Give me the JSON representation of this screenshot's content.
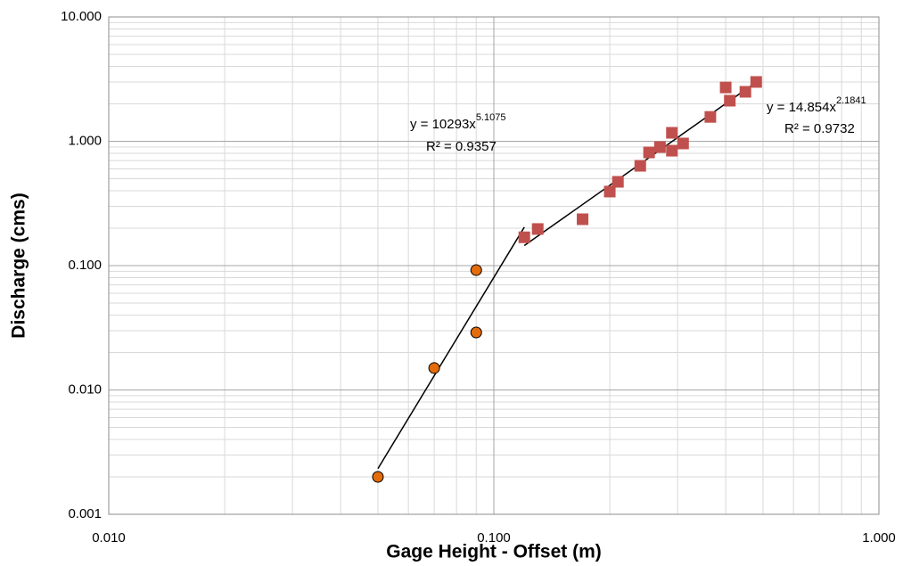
{
  "chart_data": {
    "type": "scatter",
    "x_label": "Gage Height - Offset  (m)",
    "y_label": "Discharge (cms)",
    "xscale": "log",
    "yscale": "log",
    "grid": true,
    "minor_grid": true,
    "xlim": [
      0.01,
      1
    ],
    "xticks": [
      {
        "value": 0.01,
        "label": "0.010"
      },
      {
        "value": 0.1,
        "label": "0.100"
      },
      {
        "value": 1,
        "label": "1.000"
      }
    ],
    "ylim": [
      0.001,
      10
    ],
    "yticks": [
      0.001,
      {
        "value": 0.01,
        "label": "0.010"
      },
      {
        "value": 0.1,
        "label": "0.100"
      },
      {
        "value": 1,
        "label": "1.000"
      },
      {
        "value": 10,
        "label": "10.000"
      }
    ],
    "series": [
      {
        "marker": "circle",
        "color": "#e46c0a",
        "x": [
          0.05,
          0.07,
          0.09,
          0.09
        ],
        "values": [
          0.002,
          0.015,
          0.092,
          0.029
        ]
      },
      {
        "marker": "square",
        "color": "#c0504d",
        "x": [
          0.12,
          0.13,
          0.17,
          0.2,
          0.21,
          0.24,
          0.253,
          0.27,
          0.29,
          0.29,
          0.31,
          0.365,
          0.4,
          0.41,
          0.45,
          0.48
        ],
        "values": [
          0.169,
          0.197,
          0.236,
          0.394,
          0.472,
          0.635,
          0.813,
          0.898,
          0.84,
          1.17,
          0.96,
          1.57,
          2.71,
          2.12,
          2.5,
          3.0
        ]
      }
    ],
    "trendlines": [
      {
        "color": "#000000",
        "x": [
          0.05,
          0.12
        ],
        "values": [
          0.00233,
          0.204
        ],
        "equation": {
          "base": "y = 10293x",
          "exponent": "5.1075"
        },
        "r2": "R² = 0.9357"
      },
      {
        "color": "#000000",
        "x": [
          0.12,
          0.48
        ],
        "values": [
          0.145,
          2.99
        ],
        "equation": {
          "base": "y = 14.854x",
          "exponent": "2.1841"
        },
        "r2": "R² = 0.9732"
      }
    ]
  }
}
